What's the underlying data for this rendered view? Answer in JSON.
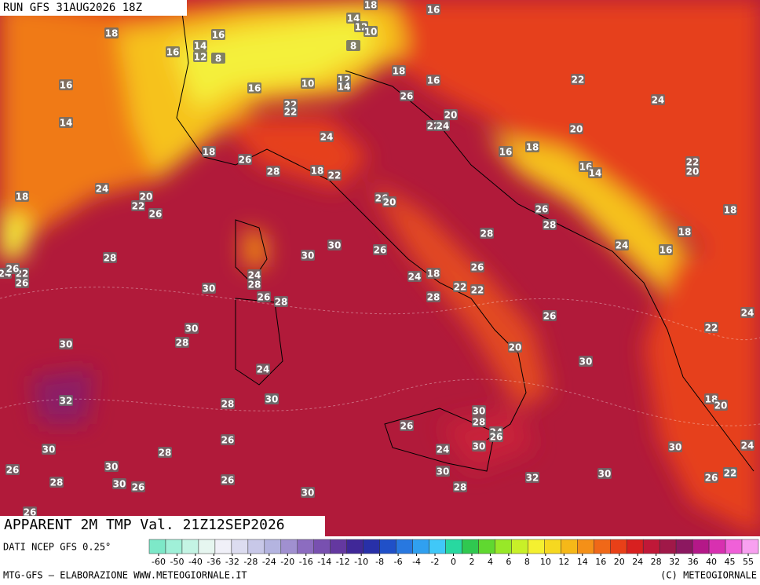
{
  "header": {
    "run": "RUN GFS 31AUG2026 18Z"
  },
  "map": {
    "labels": [
      18,
      16,
      16,
      14,
      12,
      8,
      16,
      14,
      18,
      24,
      20,
      22,
      26,
      28,
      30,
      30,
      28,
      30,
      32,
      28,
      30,
      26,
      28,
      30,
      26,
      28,
      30,
      30,
      26,
      26,
      30,
      26,
      24,
      24,
      28,
      26,
      28,
      30,
      30,
      26,
      28,
      18,
      22,
      26,
      18,
      16,
      22,
      22,
      10,
      12,
      14,
      14,
      12,
      10,
      8,
      18,
      16,
      18,
      16,
      26,
      20,
      22,
      24,
      24,
      26,
      20,
      28,
      24,
      18,
      28,
      22,
      22,
      26,
      26,
      20,
      30,
      30,
      28,
      26,
      24,
      26,
      24,
      30,
      30,
      28,
      32,
      30,
      26,
      30,
      30,
      26,
      22,
      24,
      18,
      20,
      22,
      24,
      16,
      18,
      18,
      24,
      26,
      28,
      16,
      14,
      22,
      20,
      16,
      18,
      20,
      22,
      24,
      22,
      24,
      26,
      26
    ]
  },
  "footer": {
    "title": "APPARENT 2M TMP Val. 21Z12SEP2026",
    "source": "DATI NCEP GFS 0.25°",
    "credit": "MTG-GFS — ELABORAZIONE WWW.METEOGIORNALE.IT",
    "copyright": "(C) METEOGIORNALE"
  },
  "legend": {
    "ticks": [
      -60,
      -50,
      -40,
      -36,
      -32,
      -28,
      -24,
      -20,
      -16,
      -14,
      -12,
      -10,
      -8,
      -6,
      -4,
      -2,
      0,
      2,
      4,
      6,
      8,
      10,
      12,
      14,
      16,
      20,
      24,
      28,
      32,
      36,
      40,
      45,
      55
    ]
  }
}
